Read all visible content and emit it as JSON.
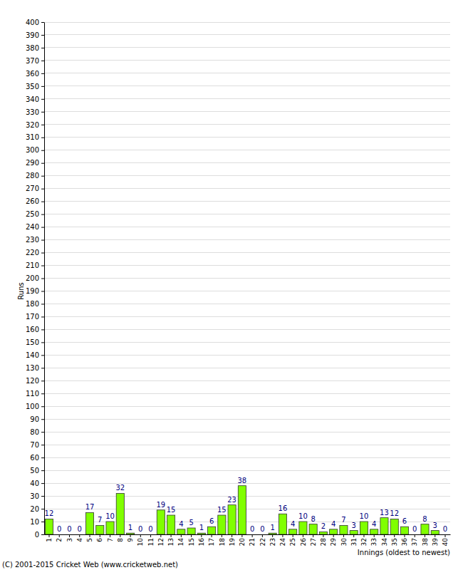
{
  "chart_data": {
    "type": "bar",
    "x_label": "Innings (oldest to newest)",
    "y_label": "Runs",
    "annotations": [
      "(C) 2001-2015 Cricket Web (www.cricketweb.net)"
    ],
    "categories": [
      "1",
      "2",
      "3",
      "4",
      "5",
      "6",
      "7",
      "8",
      "9",
      "10",
      "11",
      "12",
      "13",
      "14",
      "15",
      "16",
      "17",
      "18",
      "19",
      "20",
      "21",
      "22",
      "23",
      "24",
      "25",
      "26",
      "27",
      "28",
      "29",
      "30",
      "31",
      "32",
      "33",
      "34",
      "35",
      "36",
      "37",
      "38",
      "39",
      "40"
    ],
    "values": [
      12,
      0,
      0,
      0,
      17,
      7,
      10,
      32,
      1,
      0,
      0,
      19,
      15,
      4,
      5,
      1,
      6,
      15,
      23,
      38,
      0,
      0,
      1,
      16,
      4,
      10,
      8,
      2,
      4,
      7,
      3,
      10,
      4,
      13,
      12,
      6,
      0,
      8,
      3,
      0
    ],
    "color": "#80ff00",
    "ylim": [
      0,
      400
    ],
    "yticks": [
      0,
      10,
      20,
      30,
      40,
      50,
      60,
      70,
      80,
      90,
      100,
      110,
      120,
      130,
      140,
      150,
      160,
      170,
      180,
      190,
      200,
      210,
      220,
      230,
      240,
      250,
      260,
      270,
      280,
      290,
      300,
      310,
      320,
      330,
      340,
      350,
      360,
      370,
      380,
      390,
      400
    ],
    "grid": true,
    "data_labels": true
  }
}
